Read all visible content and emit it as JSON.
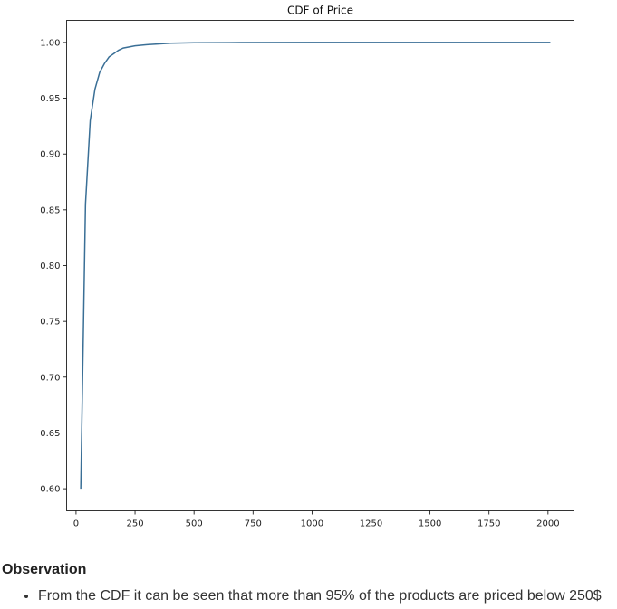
{
  "chart_data": {
    "type": "line",
    "title": "CDF of Price",
    "xlabel": "",
    "ylabel": "",
    "xlim": [
      -40,
      2110
    ],
    "ylim": [
      0.5802,
      1.0198
    ],
    "xticks": [
      0,
      250,
      500,
      750,
      1000,
      1250,
      1500,
      1750,
      2000
    ],
    "xtick_labels": [
      "0",
      "250",
      "500",
      "750",
      "1000",
      "1250",
      "1500",
      "1750",
      "2000"
    ],
    "yticks": [
      0.6,
      0.65,
      0.7,
      0.75,
      0.8,
      0.85,
      0.9,
      0.95,
      1.0
    ],
    "ytick_labels": [
      "0.60",
      "0.65",
      "0.70",
      "0.75",
      "0.80",
      "0.85",
      "0.90",
      "0.95",
      "1.00"
    ],
    "grid": false,
    "line_color": "#3a6f96",
    "series": [
      {
        "x": [
          20,
          40,
          60,
          80,
          100,
          120,
          140,
          160,
          180,
          200,
          250,
          300,
          400,
          500,
          700,
          1000,
          1500,
          2010
        ],
        "values": [
          0.6,
          0.855,
          0.93,
          0.958,
          0.973,
          0.981,
          0.987,
          0.99,
          0.993,
          0.995,
          0.997,
          0.998,
          0.9993,
          0.9997,
          0.9999,
          1.0,
          1.0,
          1.0
        ]
      }
    ]
  },
  "observation": {
    "heading": "Observation",
    "items": [
      "From the CDF it can be seen that more than 95% of the products are priced below 250$"
    ]
  }
}
